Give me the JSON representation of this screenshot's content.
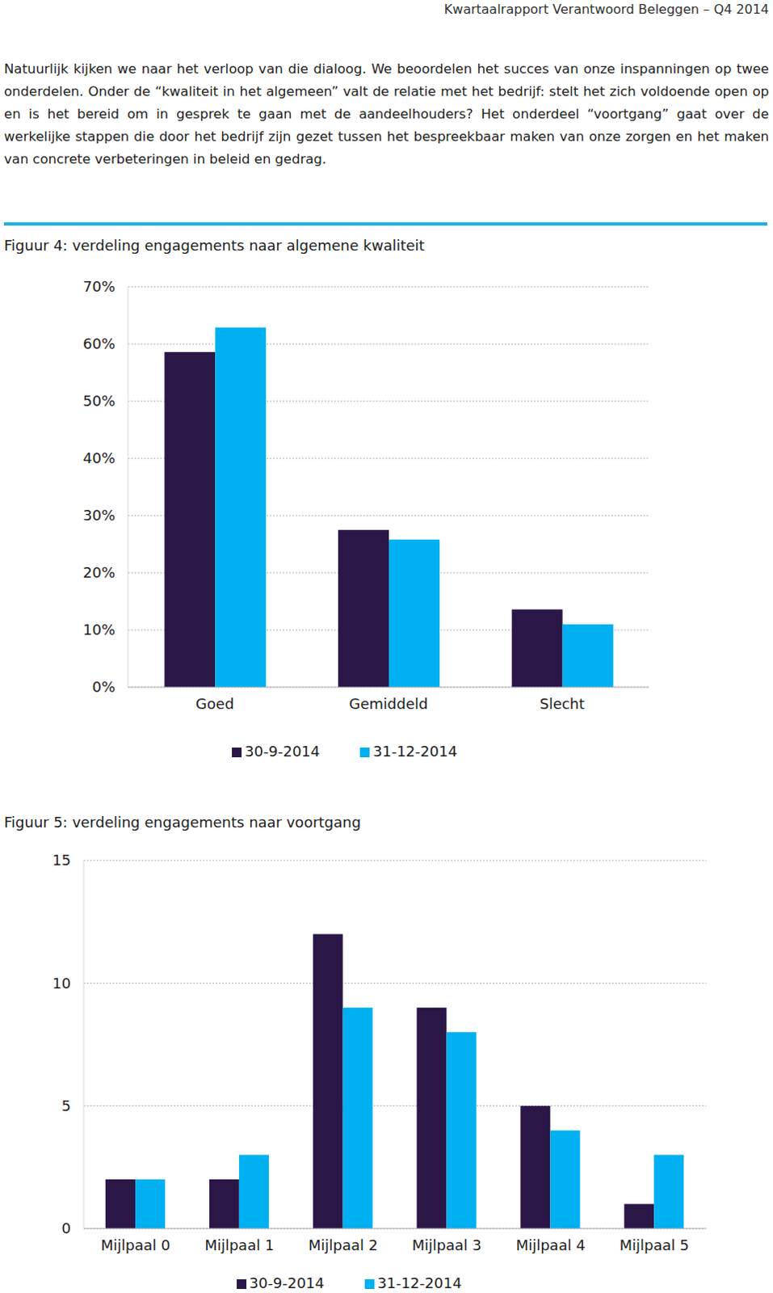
{
  "header": {
    "title": "Kwartaalrapport Verantwoord Beleggen – Q4 2014"
  },
  "paragraph": "Natuurlijk kijken we naar het verloop van die dialoog. We beoordelen het succes van onze inspanningen op twee onderdelen. Onder de “kwaliteit in het algemeen” valt de relatie met het bedrijf: stelt het zich voldoende open op en is het bereid om in gesprek te gaan met de aandeelhouders? Het onderdeel “voortgang” gaat over de werkelijke stappen die door het bedrijf zijn gezet tussen het bespreekbaar maken van onze zorgen en het maken van concrete verbeteringen in beleid en gedrag.",
  "chart_data": [
    {
      "type": "bar",
      "title": "Figuur 4: verdeling engagements naar algemene kwaliteit",
      "categories": [
        "Goed",
        "Gemiddeld",
        "Slecht"
      ],
      "series": [
        {
          "name": "30-9-2014",
          "color": "#2a1748",
          "values": [
            58.6,
            27.5,
            13.6
          ]
        },
        {
          "name": "31-12-2014",
          "color": "#00b0f0",
          "values": [
            62.9,
            25.8,
            11.0
          ]
        }
      ],
      "ylim": [
        0,
        70
      ],
      "yticks": [
        {
          "value": 0,
          "label": "0%"
        },
        {
          "value": 10,
          "label": "10%"
        },
        {
          "value": 20,
          "label": "20%"
        },
        {
          "value": 30,
          "label": "30%"
        },
        {
          "value": 40,
          "label": "40%"
        },
        {
          "value": 50,
          "label": "50%"
        },
        {
          "value": 60,
          "label": "60%"
        },
        {
          "value": 70,
          "label": "70%"
        }
      ],
      "grid": true,
      "legend": "bottom"
    },
    {
      "type": "bar",
      "title": "Figuur 5: verdeling engagements naar voortgang",
      "categories": [
        "Mijlpaal 0",
        "Mijlpaal 1",
        "Mijlpaal 2",
        "Mijlpaal 3",
        "Mijlpaal 4",
        "Mijlpaal 5"
      ],
      "series": [
        {
          "name": "30-9-2014",
          "color": "#2a1748",
          "values": [
            2,
            2,
            12,
            9,
            5,
            1
          ]
        },
        {
          "name": "31-12-2014",
          "color": "#00b0f0",
          "values": [
            2,
            3,
            9,
            8,
            4,
            3
          ]
        }
      ],
      "ylim": [
        0,
        15
      ],
      "yticks": [
        0,
        5,
        10,
        15
      ],
      "grid": true,
      "legend": "bottom"
    }
  ]
}
